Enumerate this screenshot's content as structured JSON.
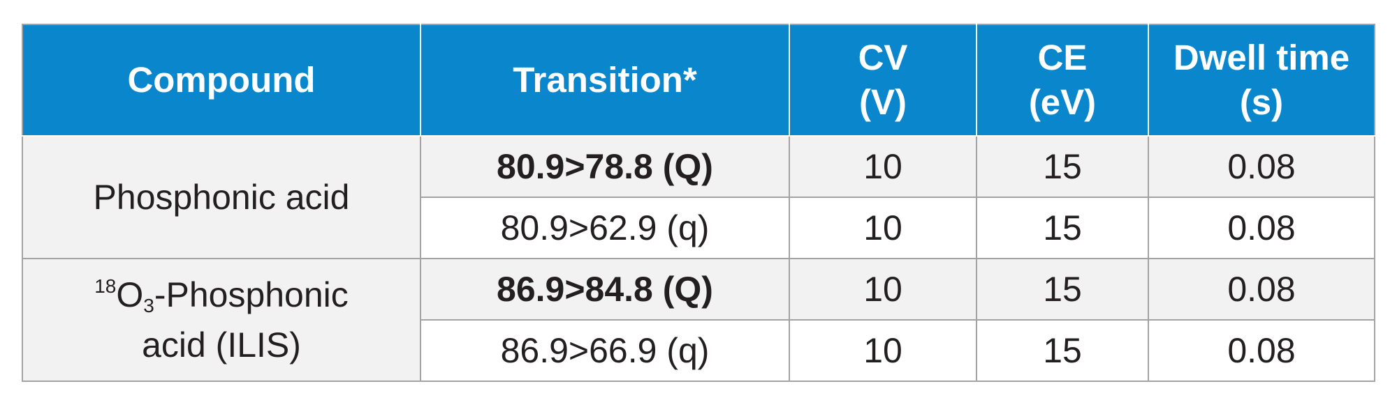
{
  "table": {
    "headers": [
      {
        "lines": [
          "Compound"
        ]
      },
      {
        "lines": [
          "Transition*"
        ]
      },
      {
        "lines": [
          "CV",
          "(V)"
        ]
      },
      {
        "lines": [
          "CE",
          "(eV)"
        ]
      },
      {
        "lines": [
          "Dwell time",
          "(s)"
        ]
      }
    ],
    "compounds": [
      {
        "name": "Phosphonic acid",
        "transitions": [
          {
            "transition": "80.9>78.8 (Q)",
            "cv": "10",
            "ce": "15",
            "dwell": "0.08"
          },
          {
            "transition": "80.9>62.9 (q)",
            "cv": "10",
            "ce": "15",
            "dwell": "0.08"
          }
        ]
      },
      {
        "name_sup": "18",
        "name_main": "O",
        "name_sub": "3",
        "name_rest": "-Phosphonic",
        "name_line2": "acid (ILIS)",
        "transitions": [
          {
            "transition": "86.9>84.8 (Q)",
            "cv": "10",
            "ce": "15",
            "dwell": "0.08"
          },
          {
            "transition": "86.9>66.9 (q)",
            "cv": "10",
            "ce": "15",
            "dwell": "0.08"
          }
        ]
      }
    ]
  },
  "colors": {
    "header_bg": "#0a87cc",
    "header_text": "#ffffff",
    "shaded_row": "#f2f2f3",
    "border": "#a3a3a3",
    "text": "#231f20"
  }
}
